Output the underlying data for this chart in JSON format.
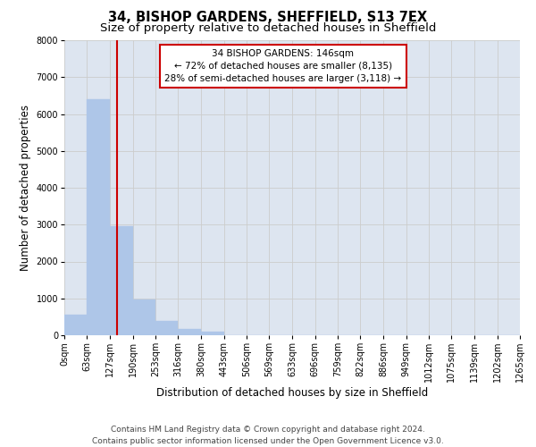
{
  "title": "34, BISHOP GARDENS, SHEFFIELD, S13 7EX",
  "subtitle": "Size of property relative to detached houses in Sheffield",
  "xlabel": "Distribution of detached houses by size in Sheffield",
  "ylabel": "Number of detached properties",
  "bar_values": [
    550,
    6400,
    2950,
    980,
    380,
    175,
    90,
    0,
    0,
    0,
    0,
    0,
    0,
    0,
    0,
    0,
    0,
    0,
    0,
    0
  ],
  "bin_edges": [
    0,
    63,
    127,
    190,
    253,
    316,
    380,
    443,
    506,
    569,
    633,
    696,
    759,
    822,
    886,
    949,
    1012,
    1075,
    1139,
    1202,
    1265
  ],
  "tick_labels": [
    "0sqm",
    "63sqm",
    "127sqm",
    "190sqm",
    "253sqm",
    "316sqm",
    "380sqm",
    "443sqm",
    "506sqm",
    "569sqm",
    "633sqm",
    "696sqm",
    "759sqm",
    "822sqm",
    "886sqm",
    "949sqm",
    "1012sqm",
    "1075sqm",
    "1139sqm",
    "1202sqm",
    "1265sqm"
  ],
  "bar_color": "#aec6e8",
  "bar_edgecolor": "#aec6e8",
  "vline_x": 146,
  "vline_color": "#cc0000",
  "ylim": [
    0,
    8000
  ],
  "yticks": [
    0,
    1000,
    2000,
    3000,
    4000,
    5000,
    6000,
    7000,
    8000
  ],
  "grid_color": "#cccccc",
  "background_color": "#dde5f0",
  "annotation_title": "34 BISHOP GARDENS: 146sqm",
  "annotation_line1": "← 72% of detached houses are smaller (8,135)",
  "annotation_line2": "28% of semi-detached houses are larger (3,118) →",
  "annotation_box_color": "#ffffff",
  "annotation_border_color": "#cc0000",
  "footer_line1": "Contains HM Land Registry data © Crown copyright and database right 2024.",
  "footer_line2": "Contains public sector information licensed under the Open Government Licence v3.0.",
  "title_fontsize": 10.5,
  "subtitle_fontsize": 9.5,
  "xlabel_fontsize": 8.5,
  "ylabel_fontsize": 8.5,
  "tick_fontsize": 7,
  "footer_fontsize": 6.5,
  "annotation_fontsize": 7.5
}
